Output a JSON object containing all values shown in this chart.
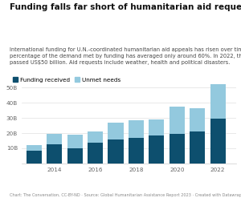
{
  "title": "Funding falls far short of humanitarian aid requested",
  "subtitle": "International funding for U.N.-coordinated humanitarian aid appeals has risen over time, but the\npercentage of the demand met by funding has averaged only around 60%. In 2022, the need\npassed US$50 billion. Aid requests include weather, health and political disasters.",
  "caption": "Chart: The Conversation, CC-BY-ND · Source: Global Humanitarian Assistance Report 2023 · Created with Datawrapper",
  "legend_labels": [
    "Funding received",
    "Unmet needs"
  ],
  "years": [
    2013,
    2014,
    2015,
    2016,
    2017,
    2018,
    2019,
    2020,
    2021,
    2022
  ],
  "funding_received": [
    8.5,
    12.4,
    10.1,
    13.5,
    15.8,
    16.8,
    18.2,
    19.5,
    21.3,
    29.7
  ],
  "unmet_needs": [
    3.5,
    7.2,
    9.0,
    7.8,
    11.2,
    11.8,
    10.8,
    17.8,
    15.3,
    22.5
  ],
  "color_funding": "#0d4f6e",
  "color_unmet": "#93c9de",
  "ylim": [
    0,
    55
  ],
  "yticks": [
    10,
    20,
    30,
    40,
    50
  ],
  "ytick_labels": [
    "10B",
    "20B",
    "30B",
    "40B",
    "50B"
  ],
  "xtick_years": [
    2014,
    2016,
    2018,
    2020,
    2022
  ],
  "bar_width": 0.75,
  "background_color": "#ffffff",
  "title_fontsize": 7.5,
  "subtitle_fontsize": 4.8,
  "legend_fontsize": 5.2,
  "axis_fontsize": 5.2,
  "caption_fontsize": 3.6
}
